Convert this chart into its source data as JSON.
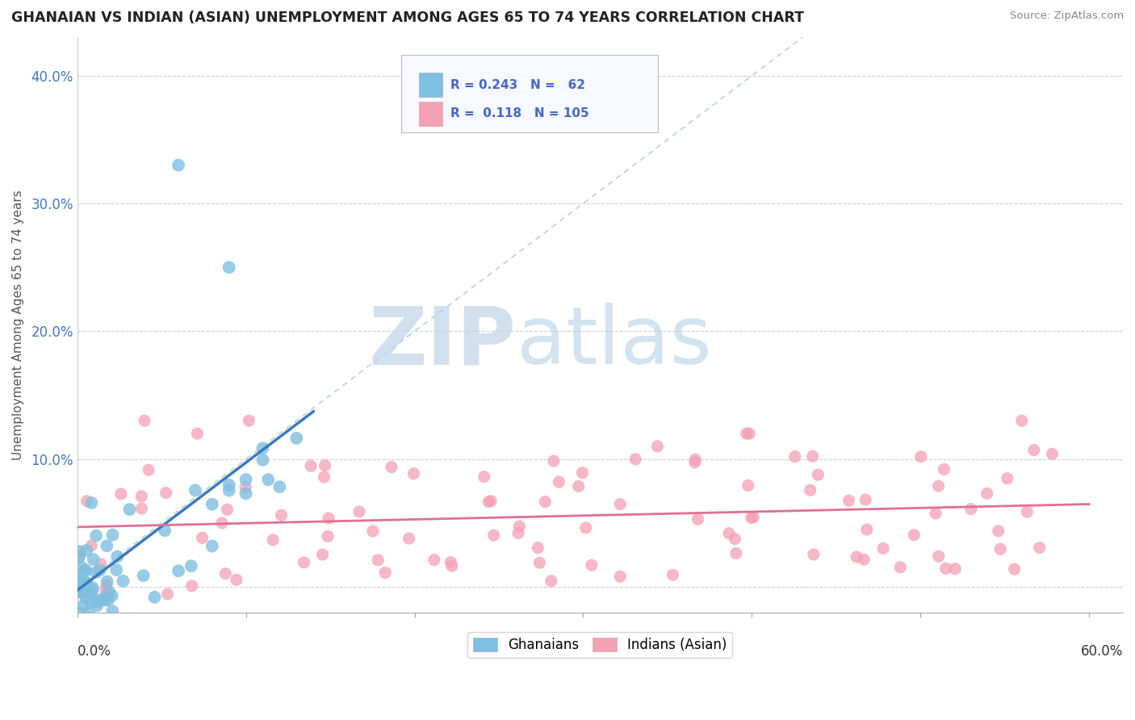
{
  "title": "GHANAIAN VS INDIAN (ASIAN) UNEMPLOYMENT AMONG AGES 65 TO 74 YEARS CORRELATION CHART",
  "source": "Source: ZipAtlas.com",
  "ylabel": "Unemployment Among Ages 65 to 74 years",
  "xlim": [
    0.0,
    0.62
  ],
  "ylim": [
    -0.02,
    0.43
  ],
  "ghanaian_color": "#7fbfdf",
  "ghanaian_trend_color": "#3a7abf",
  "indian_color": "#f4a0b5",
  "indian_trend_color": "#e07090",
  "ghanaian_R": 0.243,
  "ghanaian_N": 62,
  "indian_R": 0.118,
  "indian_N": 105,
  "watermark_zip": "ZIP",
  "watermark_atlas": "atlas",
  "background_color": "#ffffff",
  "grid_color": "#d0d0d0",
  "ref_line_color": "#b0c8e0",
  "ytick_vals": [
    0.0,
    0.1,
    0.2,
    0.3,
    0.4
  ],
  "ytick_labels": [
    "",
    "10.0%",
    "20.0%",
    "30.0%",
    "40.0%"
  ],
  "legend_R_color": "#4466cc",
  "legend_text_color": "#333333"
}
